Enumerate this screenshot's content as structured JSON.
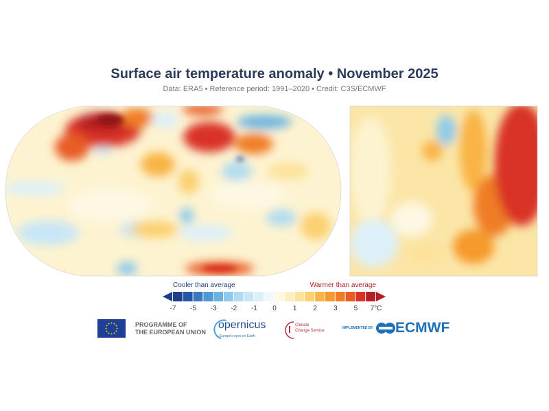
{
  "header": {
    "title": "Surface air temperature anomaly • November 2025",
    "subtitle": "Data: ERA5 • Reference period: 1991–2020 • Credit: C3S/ECMWF"
  },
  "maps": {
    "global": {
      "projection": "Robinson",
      "region": "world"
    },
    "inset": {
      "region": "Europe"
    }
  },
  "legend": {
    "cool_label": "Cooler than average",
    "warm_label": "Warmer than average",
    "ticks": [
      "-7",
      "-5",
      "-3",
      "-2",
      "-1",
      "0",
      "1",
      "2",
      "3",
      "5",
      "7°C"
    ],
    "colors": [
      "#1f3f86",
      "#2456a6",
      "#3a78bf",
      "#4f98d2",
      "#6ab3e0",
      "#8fcaec",
      "#b0dbf2",
      "#c8e6f6",
      "#ddf0f9",
      "#f0f8fc",
      "#fdf8e4",
      "#fdefc0",
      "#fce29a",
      "#fbd070",
      "#f9b444",
      "#f59a2c",
      "#f07d26",
      "#e85c25",
      "#d93326",
      "#b51e24"
    ]
  },
  "logos": {
    "eu": "PROGRAMME OF THE EUROPEAN UNION",
    "eu_line1": "PROGRAMME OF",
    "eu_line2": "THE EUROPEAN UNION",
    "copernicus": "opernicus",
    "copernicus_full": "Copernicus",
    "copernicus_tagline": "Europe's eyes on Earth",
    "c3s_line1": "Climate",
    "c3s_line2": "Change Service",
    "implemented_by": "IMPLEMENTED BY",
    "ecmwf": "ECMWF"
  }
}
